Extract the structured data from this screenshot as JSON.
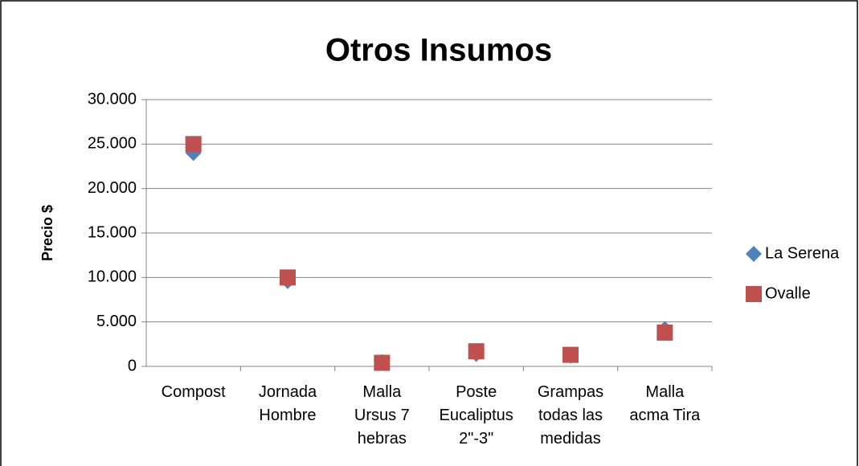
{
  "chart_data": {
    "type": "scatter",
    "title": "Otros Insumos",
    "y_label": "Precio $",
    "categories": [
      "Compost",
      "Jornada Hombre",
      "Malla Ursus 7 hebras",
      "Poste Eucaliptus 2\"-3\"",
      "Grampas todas las medidas",
      "Malla acma Tira"
    ],
    "series": [
      {
        "name": "La Serena",
        "color": "#4f81bd",
        "marker": "diamond",
        "values": [
          24000,
          9600,
          500,
          1400,
          1200,
          4200
        ]
      },
      {
        "name": "Ovalle",
        "color": "#c0504d",
        "marker": "square",
        "values": [
          25000,
          10000,
          400,
          1700,
          1300,
          3800
        ]
      }
    ],
    "ylim": [
      0,
      30000
    ],
    "yticks": [
      0,
      {
        "value": 5000,
        "label": "5.000"
      },
      {
        "value": 10000,
        "label": "10.000"
      },
      {
        "value": 15000,
        "label": "15.000"
      },
      {
        "value": 20000,
        "label": "20.000"
      },
      {
        "value": 25000,
        "label": "25.000"
      },
      {
        "value": 30000,
        "label": "30.000"
      }
    ],
    "grid": true,
    "legend": "right"
  }
}
